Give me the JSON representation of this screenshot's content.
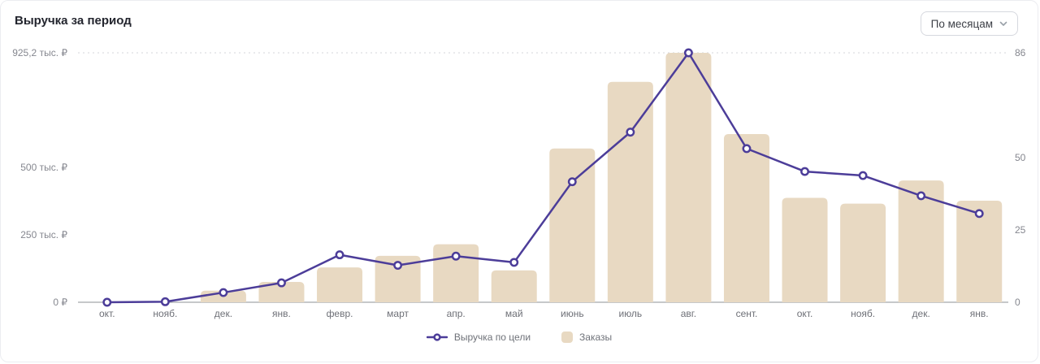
{
  "header": {
    "title": "Выручка за период"
  },
  "controls": {
    "period_dropdown": {
      "value": "По месяцам"
    }
  },
  "colors": {
    "line": "#4C3D99",
    "bar": "#E8D9C2",
    "grid": "#d3d4da",
    "axis_line": "#8d9096",
    "tick_text": "#85878f",
    "month_text": "#6e7077"
  },
  "chart_data": {
    "type": "combo",
    "title": "Выручка за период",
    "categories": [
      "окт.",
      "нояб.",
      "дек.",
      "янв.",
      "февр.",
      "март",
      "апр.",
      "май",
      "июнь",
      "июль",
      "авг.",
      "сент.",
      "окт.",
      "нояб.",
      "дек.",
      "янв."
    ],
    "series": [
      {
        "name": "Выручка по цели",
        "type": "line",
        "axis": "left",
        "unit": "тыс. ₽",
        "color": "#4C3D99",
        "values": [
          0,
          2,
          36,
          72,
          176,
          137,
          171,
          148,
          447,
          631,
          925.2,
          570,
          485,
          470,
          395,
          329
        ]
      },
      {
        "name": "Заказы",
        "type": "bar",
        "axis": "right",
        "unit": "шт.",
        "color": "#E8D9C2",
        "values": [
          0,
          0,
          4,
          7,
          12,
          16,
          20,
          11,
          53,
          76,
          86,
          58,
          36,
          34,
          42,
          35
        ]
      }
    ],
    "left_axis": {
      "max": 925.2,
      "ticks": [
        {
          "value": 0,
          "label": "0 ₽"
        },
        {
          "value": 250,
          "label": "250 тыс. ₽"
        },
        {
          "value": 500,
          "label": "500 тыс. ₽"
        },
        {
          "value": 925.2,
          "label": "925,2 тыс. ₽"
        }
      ]
    },
    "right_axis": {
      "max": 86,
      "ticks": [
        {
          "value": 0,
          "label": "0"
        },
        {
          "value": 25,
          "label": "25"
        },
        {
          "value": 50,
          "label": "50"
        },
        {
          "value": 86,
          "label": "86"
        }
      ]
    },
    "grid": "dotted line at top (series maximum) only",
    "legend_position": "bottom-center",
    "legend": [
      {
        "label": "Выручка по цели",
        "marker": "line-dot"
      },
      {
        "label": "Заказы",
        "marker": "square"
      }
    ]
  }
}
